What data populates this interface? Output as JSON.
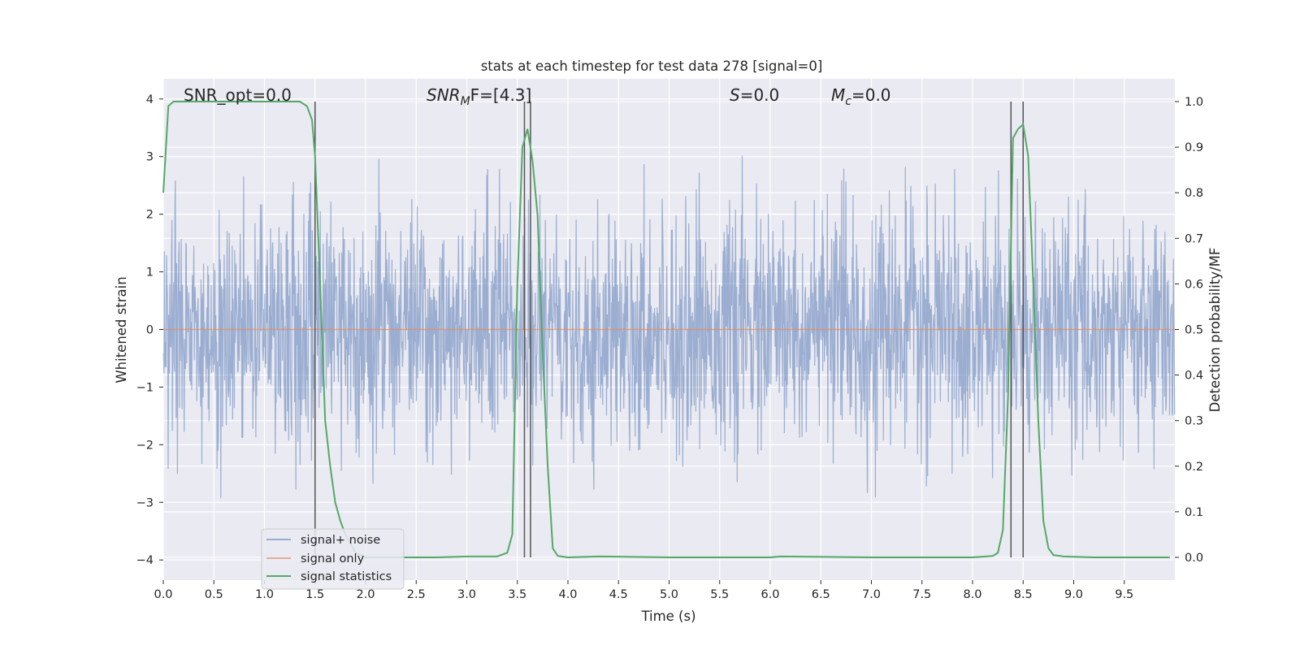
{
  "chart_data": {
    "type": "line",
    "title": "stats at each timestep for test data 278 [signal=0]",
    "xlabel": "Time (s)",
    "ylabel_left": "Whitened strain",
    "ylabel_right": "Detection probability/MF",
    "xlim": [
      0,
      10
    ],
    "ylim_left": [
      -4.35,
      4.35
    ],
    "ylim_right": [
      -0.05,
      1.05
    ],
    "x_ticks": [
      0.0,
      0.5,
      1.0,
      1.5,
      2.0,
      2.5,
      3.0,
      3.5,
      4.0,
      4.5,
      5.0,
      5.5,
      6.0,
      6.5,
      7.0,
      7.5,
      8.0,
      8.5,
      9.0,
      9.5
    ],
    "x_tick_labels": [
      "0.0",
      "0.5",
      "1.0",
      "1.5",
      "2.0",
      "2.5",
      "3.0",
      "3.5",
      "4.0",
      "4.5",
      "5.0",
      "5.5",
      "6.0",
      "6.5",
      "7.0",
      "7.5",
      "8.0",
      "8.5",
      "9.0",
      "9.5"
    ],
    "y_left_ticks": [
      4,
      3,
      2,
      1,
      0,
      -1,
      -2,
      -3,
      -4
    ],
    "y_left_tick_labels": [
      "4",
      "3",
      "2",
      "1",
      "0",
      "−1",
      "−2",
      "−3",
      "−4"
    ],
    "y_right_ticks": [
      1.0,
      0.9,
      0.8,
      0.7,
      0.6,
      0.5,
      0.4,
      0.3,
      0.2,
      0.1,
      0.0
    ],
    "y_right_tick_labels": [
      "1.0",
      "0.9",
      "0.8",
      "0.7",
      "0.6",
      "0.5",
      "0.4",
      "0.3",
      "0.2",
      "0.1",
      "0.0"
    ],
    "grid": true,
    "legend_position": "lower-left",
    "annotations": {
      "snr_opt": "SNR_opt=0.0",
      "snr_mf_base": "SNR",
      "snr_mf_sub": "M",
      "snr_mf_rest": "F=[4.3]",
      "s_base": "S",
      "s_rest": "=0.0",
      "mc_base": "M",
      "mc_sub": "c",
      "mc_rest": "=0.0"
    },
    "series": [
      {
        "name": "signal+ noise",
        "color": "#4c72b0",
        "style": "noise",
        "amplitude_std": 1.0,
        "range": [
          -4.0,
          4.0
        ]
      },
      {
        "name": "signal only",
        "color": "#dd8452",
        "style": "flat",
        "value": 0.0
      },
      {
        "name": "signal statistics",
        "color": "#55a868",
        "axis": "right",
        "x": [
          0.0,
          0.05,
          0.1,
          0.2,
          0.4,
          0.6,
          0.8,
          1.0,
          1.2,
          1.35,
          1.42,
          1.47,
          1.5,
          1.55,
          1.6,
          1.65,
          1.7,
          1.75,
          1.8,
          1.85,
          1.9,
          2.0,
          2.3,
          2.7,
          3.0,
          3.3,
          3.4,
          3.45,
          3.5,
          3.55,
          3.6,
          3.65,
          3.7,
          3.75,
          3.8,
          3.85,
          3.9,
          4.0,
          4.3,
          5.0,
          6.0,
          6.1,
          7.0,
          8.0,
          8.2,
          8.25,
          8.3,
          8.35,
          8.4,
          8.45,
          8.5,
          8.55,
          8.6,
          8.65,
          8.7,
          8.75,
          8.8,
          8.9,
          9.2,
          9.95
        ],
        "values": [
          0.8,
          0.99,
          1.0,
          1.0,
          1.0,
          1.0,
          1.0,
          1.0,
          1.0,
          1.0,
          0.99,
          0.96,
          0.88,
          0.6,
          0.3,
          0.2,
          0.12,
          0.08,
          0.05,
          0.03,
          0.01,
          0.0,
          0.0,
          0.0,
          0.002,
          0.002,
          0.01,
          0.05,
          0.6,
          0.9,
          0.94,
          0.87,
          0.75,
          0.45,
          0.2,
          0.02,
          0.003,
          0.0,
          0.002,
          0.0,
          0.0,
          0.002,
          0.0,
          0.0,
          0.003,
          0.01,
          0.06,
          0.35,
          0.92,
          0.94,
          0.95,
          0.88,
          0.6,
          0.3,
          0.08,
          0.02,
          0.005,
          0.002,
          0.0,
          0.0
        ]
      }
    ],
    "vlines": [
      1.5,
      3.57,
      3.63,
      8.38,
      8.5
    ]
  }
}
